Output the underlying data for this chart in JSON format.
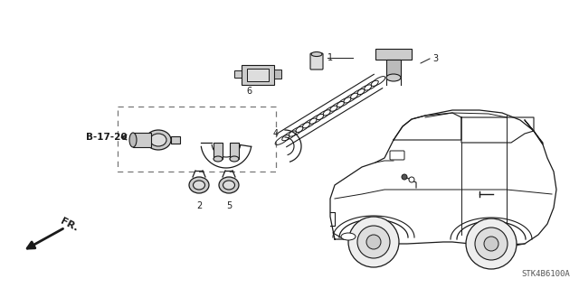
{
  "background_color": "#ffffff",
  "line_color": "#1a1a1a",
  "gray_color": "#555555",
  "diagram_id": "STK4B6100A",
  "ref_label": "B-17-20",
  "figsize": [
    6.4,
    3.19
  ],
  "dpi": 100
}
